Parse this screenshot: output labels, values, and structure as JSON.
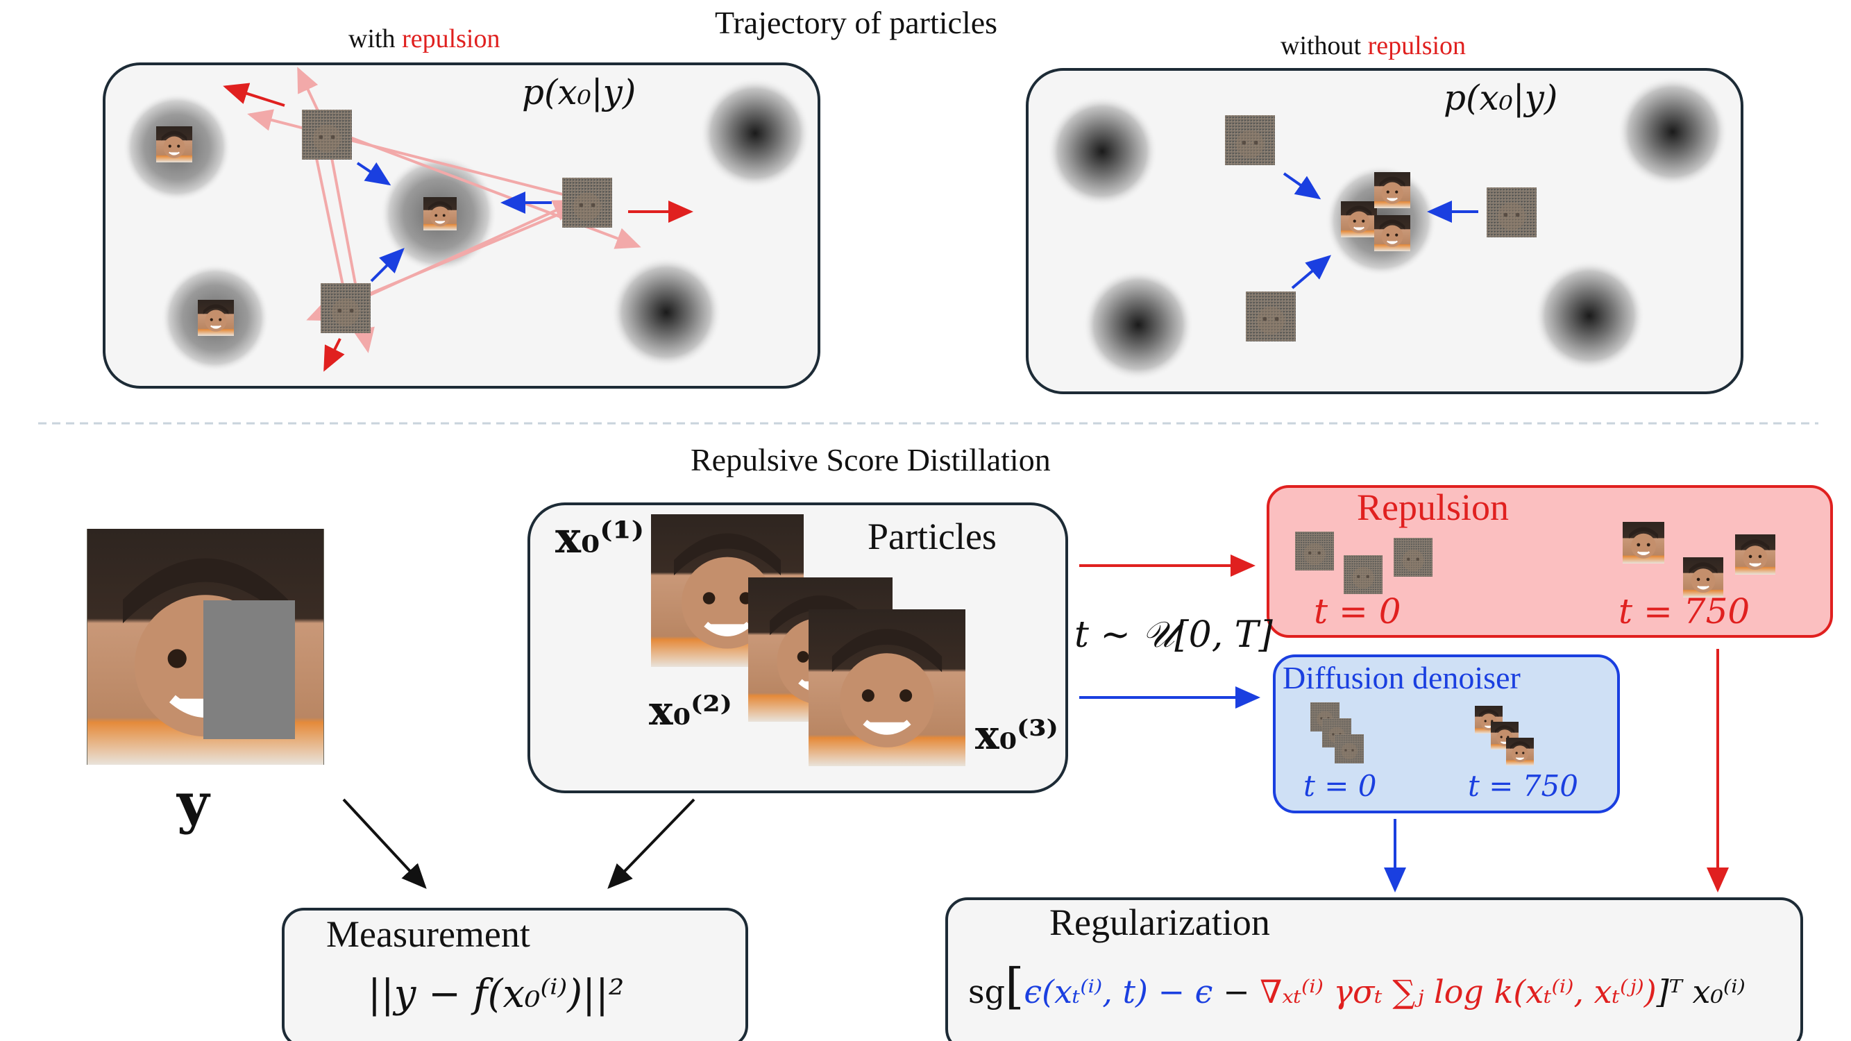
{
  "trajectory": {
    "title": "Trajectory of particles",
    "left_caption_prefix": "with",
    "left_caption_highlight": "repulsion",
    "right_caption_prefix": "without",
    "right_caption_highlight": "repulsion",
    "posterior_label_left": "p(x₀|y)",
    "posterior_label_right": "p(x₀|y)"
  },
  "section_title": "Repulsive Score Distillation",
  "measurement_image_label": "y",
  "particles": {
    "title": "Particles",
    "x1_label": "x₀⁽¹⁾",
    "x2_label": "x₀⁽²⁾",
    "x3_label": "x₀⁽³⁾"
  },
  "time_sampling": "t ~ 𝒰[0, T]",
  "repulsion": {
    "title": "Repulsion",
    "t0_label": "t = 0",
    "t750_label": "t = 750"
  },
  "denoiser": {
    "title": "Diffusion denoiser",
    "t0_label": "t = 0",
    "t750_label": "t = 750"
  },
  "measurement": {
    "title": "Measurement",
    "formula": "||y − f(x₀⁽ⁱ⁾)||²"
  },
  "regularization": {
    "title": "Regularization",
    "sg": "sg",
    "blue_part": "ϵ(xₜ⁽ⁱ⁾, t) − ϵ",
    "minus": "−",
    "red_part": "∇ₓₜ⁽ⁱ⁾ γσₜ ∑ⱼ log k(xₜ⁽ⁱ⁾, xₜ⁽ʲ⁾)",
    "tail": "]ᵀ x₀⁽ⁱ⁾"
  },
  "colors": {
    "repulsion_box": "#fbbfc0",
    "repulsion_border": "#e0201f",
    "denoiser_box": "#cfe0f5",
    "denoiser_border": "#1a3fe0",
    "panel_fill": "#f5f5f5",
    "panel_border": "#1d2b36",
    "red_arrow": "#e0201f",
    "blue_arrow": "#1a3fe0"
  }
}
